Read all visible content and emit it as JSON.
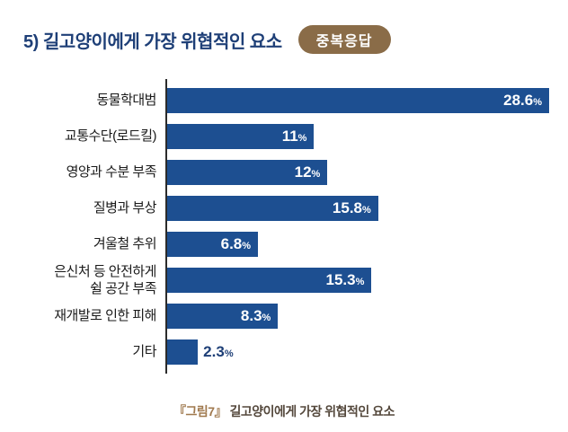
{
  "page": {
    "title": "5) 길고양이에게 가장 위협적인 요소",
    "badge": "중복응답",
    "caption_prefix": "『그림7』",
    "caption_text": " 길고양이에게 가장 위협적인 요소"
  },
  "chart_data": {
    "type": "bar",
    "orientation": "horizontal",
    "title": "5) 길고양이에게 가장 위협적인 요소",
    "xlabel": "",
    "ylabel": "",
    "unit": "%",
    "xlim": [
      0,
      28.6
    ],
    "grid": false,
    "legend": "none",
    "categories": [
      "동물학대범",
      "교통수단(로드킬)",
      "영양과 수분 부족",
      "질병과 부상",
      "겨울철 추위",
      "은신처 등 안전하게\n쉴 공간 부족",
      "재개발로 인한 피해",
      "기타"
    ],
    "values": [
      28.6,
      11,
      12,
      15.8,
      6.8,
      15.3,
      8.3,
      2.3
    ],
    "value_labels": [
      "28.6",
      "11",
      "12",
      "15.8",
      "6.8",
      "15.3",
      "8.3",
      "2.3"
    ]
  },
  "colors": {
    "title": "#1e3f77",
    "badge_bg": "#8a6c48",
    "badge_text": "#ffffff",
    "bar": "#1d4f91",
    "value_inside": "#ffffff",
    "value_outside": "#1e3f77",
    "axis": "#2b2b2b",
    "caption_accent": "#a0794e",
    "caption_text": "#54483c"
  }
}
